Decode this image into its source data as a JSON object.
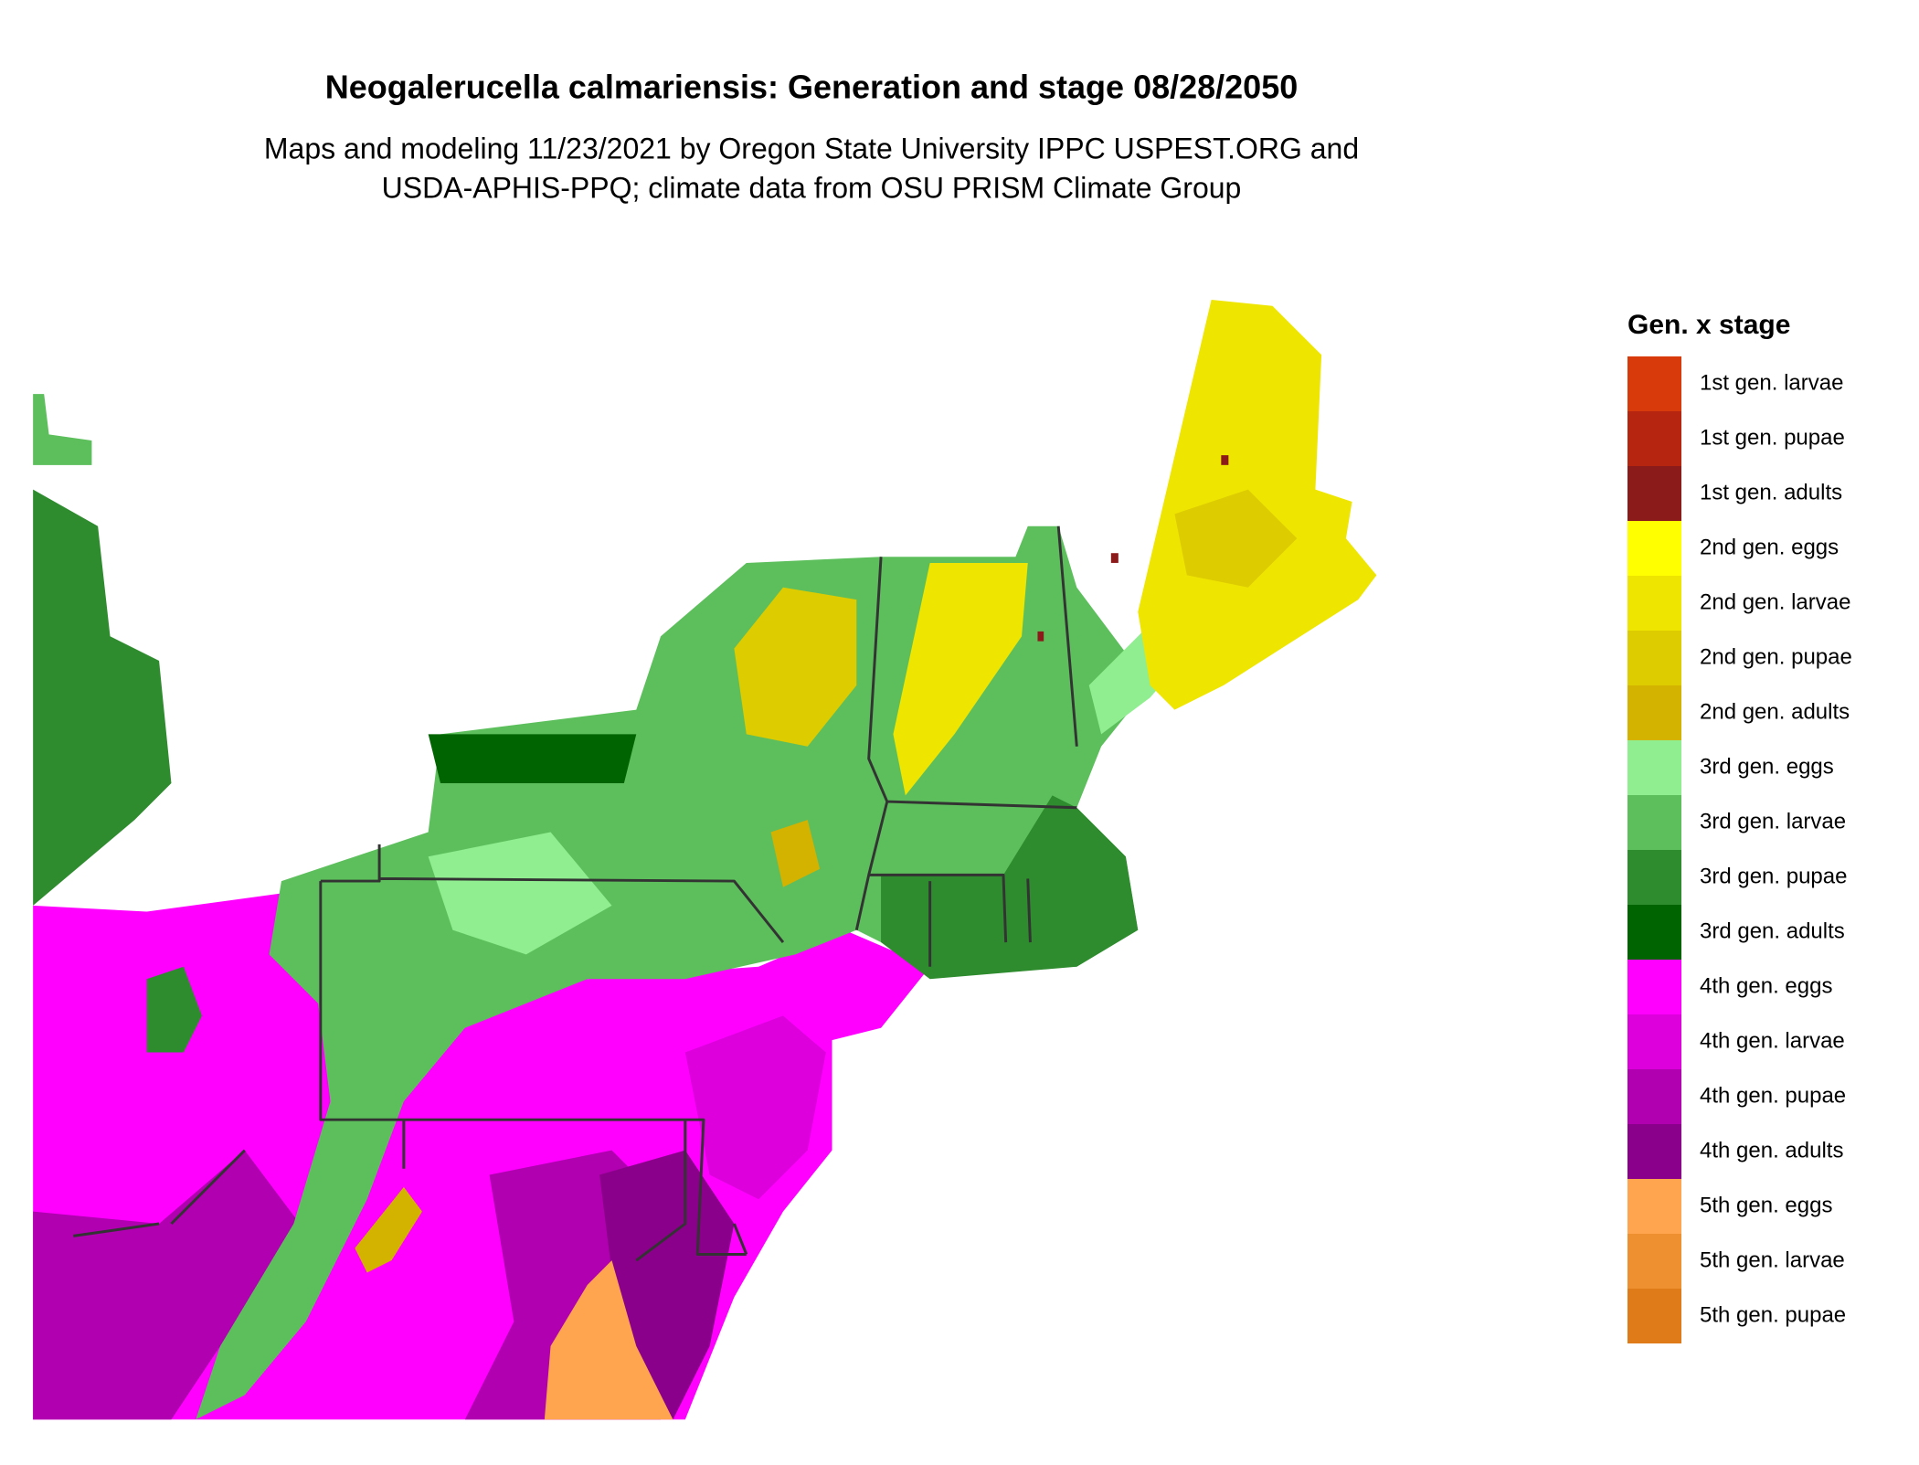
{
  "header": {
    "title": "Neogalerucella calmariensis: Generation and stage 08/28/2050",
    "subtitle": [
      "Maps and modeling 11/23/2021 by Oregon State University IPPC USPEST.ORG and",
      "USDA-APHIS-PPQ; climate data from OSU PRISM Climate Group"
    ]
  },
  "legend": {
    "title": "Gen. x stage",
    "items": [
      {
        "label": "1st gen. larvae",
        "color": "#d93a0c"
      },
      {
        "label": "1st gen. pupae",
        "color": "#b5250f"
      },
      {
        "label": "1st gen. adults",
        "color": "#8b1a1a"
      },
      {
        "label": "2nd gen. eggs",
        "color": "#ffff00"
      },
      {
        "label": "2nd gen. larvae",
        "color": "#eee600"
      },
      {
        "label": "2nd gen. pupae",
        "color": "#ddcc00"
      },
      {
        "label": "2nd gen. adults",
        "color": "#d4b200"
      },
      {
        "label": "3rd gen. eggs",
        "color": "#90ee90"
      },
      {
        "label": "3rd gen. larvae",
        "color": "#5cbf5c"
      },
      {
        "label": "3rd gen. pupae",
        "color": "#2e8b2e"
      },
      {
        "label": "3rd gen. adults",
        "color": "#006400"
      },
      {
        "label": "4th gen. eggs",
        "color": "#ff00ff"
      },
      {
        "label": "4th gen. larvae",
        "color": "#dd00dd"
      },
      {
        "label": "4th gen. pupae",
        "color": "#b000b0"
      },
      {
        "label": "4th gen. adults",
        "color": "#8b008b"
      },
      {
        "label": "5th gen. eggs",
        "color": "#ffa54f"
      },
      {
        "label": "5th gen. larvae",
        "color": "#ee9030"
      },
      {
        "label": "5th gen. pupae",
        "color": "#e07b1a"
      }
    ]
  }
}
